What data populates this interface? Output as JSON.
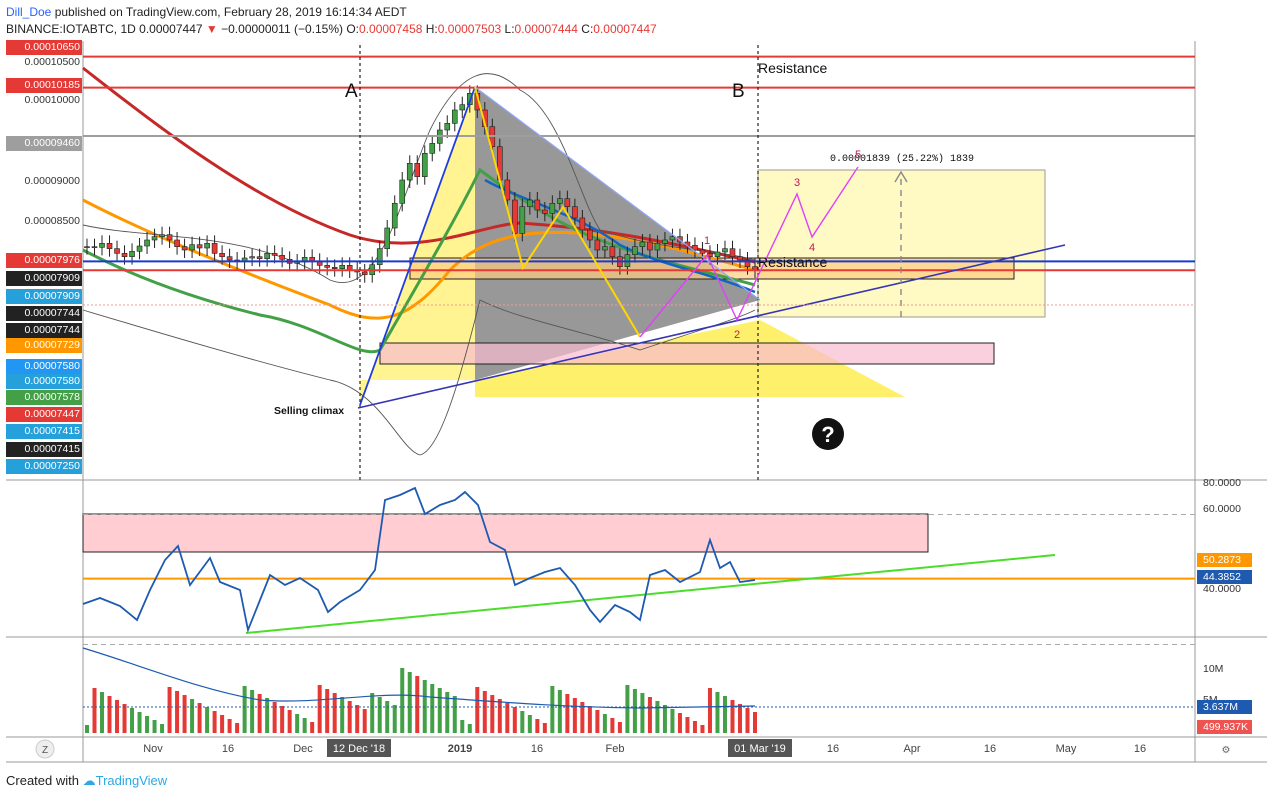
{
  "header": {
    "user": "Dill_Doe",
    "published": "published on TradingView.com, February 28, 2019 16:14:34 AEDT",
    "symbol_prefix": "BINANCE:IOTABTC, 1D",
    "price": "0.00007447",
    "change": "−0.00000011 (−0.15%)",
    "o_label": "O:",
    "o_value": "0.00007458",
    "h_label": "H:",
    "h_value": "0.00007503",
    "l_label": "L:",
    "l_value": "0.00007444",
    "c_label": "C:",
    "c_value": "0.00007447"
  },
  "footer": {
    "created_with": "Created with",
    "brand": "TradingView"
  },
  "price_axis_labels": [
    {
      "text": "0.00010650",
      "color": "#e53935",
      "price": 0.0001065
    },
    {
      "text": "0.00010500",
      "color": "",
      "price": 0.000105
    },
    {
      "text": "0.00010185",
      "color": "#e53935",
      "price": 0.00010185
    },
    {
      "text": "0.00010000",
      "color": "",
      "price": 0.0001
    },
    {
      "text": "0.00009460",
      "color": "#9e9e9e",
      "price": 9.46e-05
    },
    {
      "text": "0.00009000",
      "color": "",
      "price": 9e-05
    },
    {
      "text": "0.00008500",
      "color": "",
      "price": 8.5e-05
    },
    {
      "text": "0.00007976",
      "color": "#e53935",
      "price": 7.976e-05
    },
    {
      "text": "0.00007909",
      "color": "#222222",
      "price": 7.909e-05
    },
    {
      "text": "0.00007909",
      "color": "#26a0da",
      "price": 7.909e-05
    },
    {
      "text": "0.00007744",
      "color": "#222222",
      "price": 7.744e-05
    },
    {
      "text": "0.00007744",
      "color": "#222222",
      "price": 7.744e-05
    },
    {
      "text": "0.00007729",
      "color": "#ff9800",
      "price": 7.729e-05
    },
    {
      "text": "0.00007580",
      "color": "#2196f3",
      "price": 7.58e-05
    },
    {
      "text": "0.00007580",
      "color": "#26a0da",
      "price": 7.58e-05
    },
    {
      "text": "0.00007578",
      "color": "#43a047",
      "price": 7.578e-05
    },
    {
      "text": "0.00007447",
      "color": "#e53935",
      "price": 7.447e-05
    },
    {
      "text": "0.00007415",
      "color": "#26a0da",
      "price": 7.415e-05
    },
    {
      "text": "0.00007415",
      "color": "#222222",
      "price": 7.415e-05
    },
    {
      "text": "0.00007250",
      "color": "#26a0da",
      "price": 7.25e-05
    }
  ],
  "annotations": {
    "A": "A",
    "B": "B",
    "resistance_top": "Resistance",
    "resistance_mid": "Resistance",
    "selling_climax": "Selling climax",
    "measure": "0.00001839 (25.22%) 1839",
    "question": "?",
    "wave_labels": [
      "1",
      "2",
      "3",
      "4",
      "5"
    ]
  },
  "rsi_axis": [
    "80.0000",
    "60.0000",
    "50.2873",
    "44.3852",
    "40.0000"
  ],
  "volume_axis": [
    "10M",
    "5M",
    "3.637M",
    "499.937K"
  ],
  "time_axis": [
    "Nov",
    "16",
    "Dec",
    "12 Dec '18",
    "2019",
    "16",
    "Feb",
    "01 Mar '19",
    "16",
    "Apr",
    "16",
    "May",
    "16"
  ],
  "colors": {
    "up": "#43a047",
    "down": "#e53935",
    "support_line": "#3f3fbf",
    "rsi": "#1e5bb0",
    "rsi_trend": "#4cdc2a"
  },
  "chart_data": {
    "type": "candlestick",
    "symbol": "IOTABTC",
    "timeframe": "1D",
    "horizontal_levels": [
      0.0001065,
      0.00010185,
      9.46e-05,
      7.58e-05,
      7.447e-05
    ],
    "closes": [
      7.8e-05,
      7.79e-05,
      7.85e-05,
      7.77e-05,
      7.7e-05,
      7.65e-05,
      7.73e-05,
      7.81e-05,
      7.9e-05,
      7.95e-05,
      7.98e-05,
      7.9e-05,
      7.8e-05,
      7.75e-05,
      7.83e-05,
      7.78e-05,
      7.85e-05,
      7.7e-05,
      7.65e-05,
      7.6e-05,
      7.58e-05,
      7.63e-05,
      7.65e-05,
      7.62e-05,
      7.7e-05,
      7.67e-05,
      7.61e-05,
      7.55e-05,
      7.57e-05,
      7.64e-05,
      7.58e-05,
      7.52e-05,
      7.49e-05,
      7.47e-05,
      7.52e-05,
      7.45e-05,
      7.42e-05,
      7.38e-05,
      7.53e-05,
      7.77e-05,
      8.08e-05,
      8.45e-05,
      8.8e-05,
      9.05e-05,
      8.85e-05,
      9.2e-05,
      9.35e-05,
      9.55e-05,
      9.65e-05,
      9.85e-05,
      9.93e-05,
      0.000101,
      9.85e-05,
      9.6e-05,
      9.3e-05,
      8.8e-05,
      8.5e-05,
      8e-05,
      8.4e-05,
      8.5e-05,
      8.35e-05,
      8.3e-05,
      8.45e-05,
      8.52e-05,
      8.4e-05,
      8.23e-05,
      8.05e-05,
      7.9e-05,
      7.75e-05,
      7.8e-05,
      7.65e-05,
      7.5e-05,
      7.68e-05,
      7.8e-05,
      7.87e-05,
      7.75e-05,
      7.85e-05,
      7.9e-05,
      7.95e-05,
      7.87e-05,
      7.82e-05,
      7.75e-05,
      7.7e-05,
      7.65e-05,
      7.72e-05,
      7.77e-05,
      7.65e-05,
      7.6e-05,
      7.5e-05,
      7.45e-05
    ],
    "rsi": {
      "level_upper": 70,
      "level_lower": 30,
      "current": 44.3852,
      "ema": 50.2873
    },
    "volume": {
      "ma": 3637000,
      "current": 499937
    }
  }
}
